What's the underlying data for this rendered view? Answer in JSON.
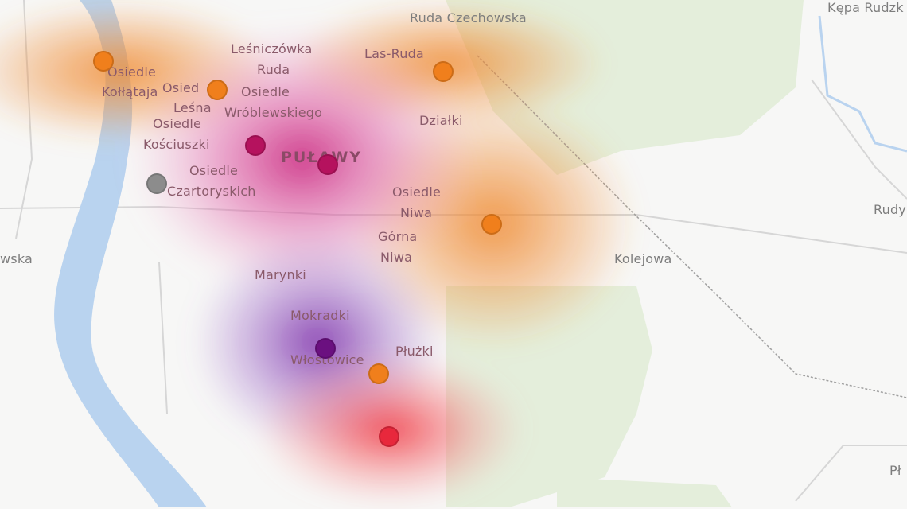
{
  "map": {
    "city_label": "PUŁAWY",
    "labels": [
      {
        "text": "Ruda Czechowska",
        "tone": "grey"
      },
      {
        "text": "Kępa Rudzk",
        "tone": "grey"
      },
      {
        "text": "Leśniczówka",
        "tone": "heat"
      },
      {
        "text": "Las-Ruda",
        "tone": "heat"
      },
      {
        "text": "Osiedle",
        "tone": "heat"
      },
      {
        "text": "Kołłątaja",
        "tone": "heat"
      },
      {
        "text": "Osied",
        "tone": "heat"
      },
      {
        "text": "Ruda",
        "tone": "heat"
      },
      {
        "text": "Osiedle",
        "tone": "heat"
      },
      {
        "text": "Wróblewskiego",
        "tone": "heat"
      },
      {
        "text": "Leśna",
        "tone": "heat"
      },
      {
        "text": "Osiedle",
        "tone": "heat"
      },
      {
        "text": "Kościuszki",
        "tone": "heat"
      },
      {
        "text": "Działki",
        "tone": "heat"
      },
      {
        "text": "Osiedle",
        "tone": "heat"
      },
      {
        "text": "Czartoryskich",
        "tone": "heat"
      },
      {
        "text": "Osiedle",
        "tone": "heat"
      },
      {
        "text": "Niwa",
        "tone": "heat"
      },
      {
        "text": "Górna",
        "tone": "heat"
      },
      {
        "text": "Niwa",
        "tone": "heat"
      },
      {
        "text": "wska",
        "tone": "grey"
      },
      {
        "text": "Rudy",
        "tone": "grey"
      },
      {
        "text": "Kolejowa",
        "tone": "grey"
      },
      {
        "text": "Marynki",
        "tone": "heat"
      },
      {
        "text": "Mokradki",
        "tone": "heat"
      },
      {
        "text": "Włostowice",
        "tone": "heat"
      },
      {
        "text": "Płużki",
        "tone": "heat"
      },
      {
        "text": "Pł",
        "tone": "grey"
      }
    ],
    "colors": {
      "orange": "#f07f1c",
      "crimson": "#b5125e",
      "gray": "#8c8c8c",
      "purple": "#6b1080",
      "red": "#e8283c",
      "river": "#b9d3ef",
      "forest": "#e4eedb"
    },
    "markers": [
      {
        "color": "orange"
      },
      {
        "color": "orange"
      },
      {
        "color": "orange"
      },
      {
        "color": "orange"
      },
      {
        "color": "orange"
      },
      {
        "color": "crimson"
      },
      {
        "color": "crimson"
      },
      {
        "color": "gray"
      },
      {
        "color": "purple"
      },
      {
        "color": "red"
      }
    ]
  }
}
